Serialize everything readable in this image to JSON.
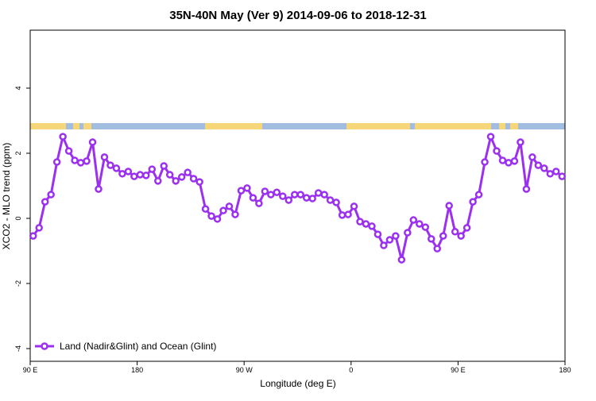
{
  "chart_data": {
    "type": "line",
    "title": "35N-40N May (Ver 9)   2014-09-06 to 2018-12-31",
    "xlabel": "Longitude (deg E)",
    "ylabel": "XCO2 - MLO trend (ppm)",
    "xlim": [
      90,
      540
    ],
    "ylim": [
      -4.39,
      5.78
    ],
    "xticks": [
      {
        "value": 90,
        "label": "90 E"
      },
      180,
      {
        "value": 270,
        "label": "90 W"
      },
      {
        "value": 360,
        "label": "0"
      },
      {
        "value": 450,
        "label": "90 E"
      },
      {
        "value": 540,
        "label": "180"
      }
    ],
    "yticks": [
      -4,
      -2,
      0,
      2,
      4
    ],
    "legend": "bottom-left",
    "series": [
      {
        "name": "Land (Nadir&Glint) and Ocean (Glint)",
        "color": "#9b30f0",
        "x": [
          92.5,
          97.5,
          102.5,
          107.5,
          112.5,
          117.5,
          122.5,
          127.5,
          132.5,
          137.5,
          142.5,
          147.5,
          152.5,
          157.5,
          162.5,
          167.5,
          172.5,
          177.5,
          182.5,
          187.5,
          192.5,
          197.5,
          202.5,
          207.5,
          212.5,
          217.5,
          222.5,
          227.5,
          232.5,
          237.5,
          242.5,
          247.5,
          252.5,
          257.5,
          262.5,
          267.5,
          272.5,
          277.5,
          282.5,
          287.5,
          292.5,
          297.5,
          302.5,
          307.5,
          312.5,
          317.5,
          322.5,
          327.5,
          332.5,
          337.5,
          342.5,
          347.5,
          352.5,
          357.5,
          362.5,
          367.5,
          372.5,
          377.5,
          382.5,
          387.5,
          392.5,
          397.5,
          402.5,
          407.5,
          412.5,
          417.5,
          422.5,
          427.5,
          432.5,
          437.5,
          442.5,
          447.5,
          452.5,
          457.5,
          462.5,
          467.5,
          472.5,
          477.5,
          482.5,
          487.5,
          492.5,
          497.5,
          502.5,
          507.5,
          512.5,
          517.5,
          522.5,
          527.5,
          532.5,
          537.5
        ],
        "values": [
          -0.54,
          -0.29,
          0.51,
          0.73,
          1.73,
          2.51,
          2.07,
          1.78,
          1.71,
          1.76,
          2.34,
          0.9,
          1.88,
          1.63,
          1.54,
          1.37,
          1.44,
          1.29,
          1.34,
          1.32,
          1.51,
          1.15,
          1.61,
          1.34,
          1.15,
          1.27,
          1.41,
          1.22,
          1.12,
          0.29,
          0.07,
          -0.02,
          0.24,
          0.37,
          0.12,
          0.85,
          0.93,
          0.63,
          0.46,
          0.83,
          0.73,
          0.8,
          0.68,
          0.56,
          0.73,
          0.73,
          0.63,
          0.61,
          0.78,
          0.73,
          0.56,
          0.49,
          0.1,
          0.12,
          0.37,
          -0.1,
          -0.17,
          -0.24,
          -0.49,
          -0.83,
          -0.66,
          -0.54,
          -1.27,
          -0.44,
          -0.05,
          -0.17,
          -0.27,
          -0.63,
          -0.93,
          -0.54,
          0.39,
          -0.41,
          -0.54,
          -0.29,
          0.51,
          0.73,
          1.73,
          2.51,
          2.07,
          1.78,
          1.71,
          1.76,
          2.34,
          0.9,
          1.88,
          1.63,
          1.54,
          1.37,
          1.44,
          1.29
        ]
      }
    ]
  }
}
